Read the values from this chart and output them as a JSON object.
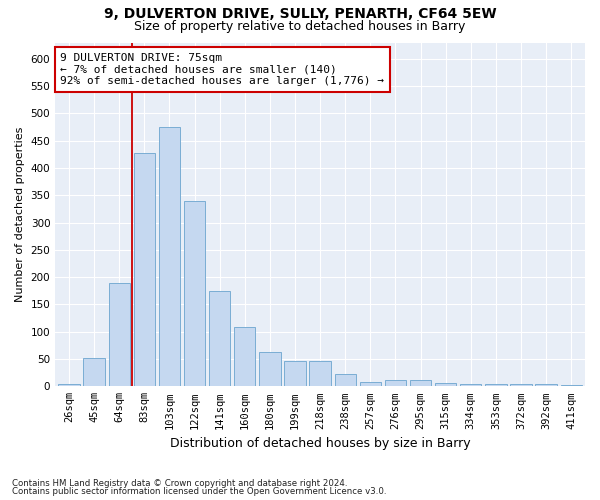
{
  "title1": "9, DULVERTON DRIVE, SULLY, PENARTH, CF64 5EW",
  "title2": "Size of property relative to detached houses in Barry",
  "xlabel": "Distribution of detached houses by size in Barry",
  "ylabel": "Number of detached properties",
  "categories": [
    "26sqm",
    "45sqm",
    "64sqm",
    "83sqm",
    "103sqm",
    "122sqm",
    "141sqm",
    "160sqm",
    "180sqm",
    "199sqm",
    "218sqm",
    "238sqm",
    "257sqm",
    "276sqm",
    "295sqm",
    "315sqm",
    "334sqm",
    "353sqm",
    "372sqm",
    "392sqm",
    "411sqm"
  ],
  "values": [
    5,
    52,
    190,
    428,
    475,
    340,
    175,
    108,
    62,
    47,
    47,
    23,
    8,
    11,
    11,
    6,
    5,
    4,
    5,
    5,
    3
  ],
  "bar_color": "#c5d8f0",
  "bar_edge_color": "#7aadd4",
  "vline_color": "#cc0000",
  "vline_x_index": 2.5,
  "annotation_text": "9 DULVERTON DRIVE: 75sqm\n← 7% of detached houses are smaller (140)\n92% of semi-detached houses are larger (1,776) →",
  "annotation_box_facecolor": "#ffffff",
  "annotation_box_edgecolor": "#cc0000",
  "ylim": [
    0,
    630
  ],
  "yticks": [
    0,
    50,
    100,
    150,
    200,
    250,
    300,
    350,
    400,
    450,
    500,
    550,
    600
  ],
  "fig_background": "#ffffff",
  "plot_background": "#e8eef7",
  "grid_color": "#ffffff",
  "title1_fontsize": 10,
  "title2_fontsize": 9,
  "xlabel_fontsize": 9,
  "ylabel_fontsize": 8,
  "tick_fontsize": 7.5,
  "annotation_fontsize": 8,
  "footer1": "Contains HM Land Registry data © Crown copyright and database right 2024.",
  "footer2": "Contains public sector information licensed under the Open Government Licence v3.0."
}
